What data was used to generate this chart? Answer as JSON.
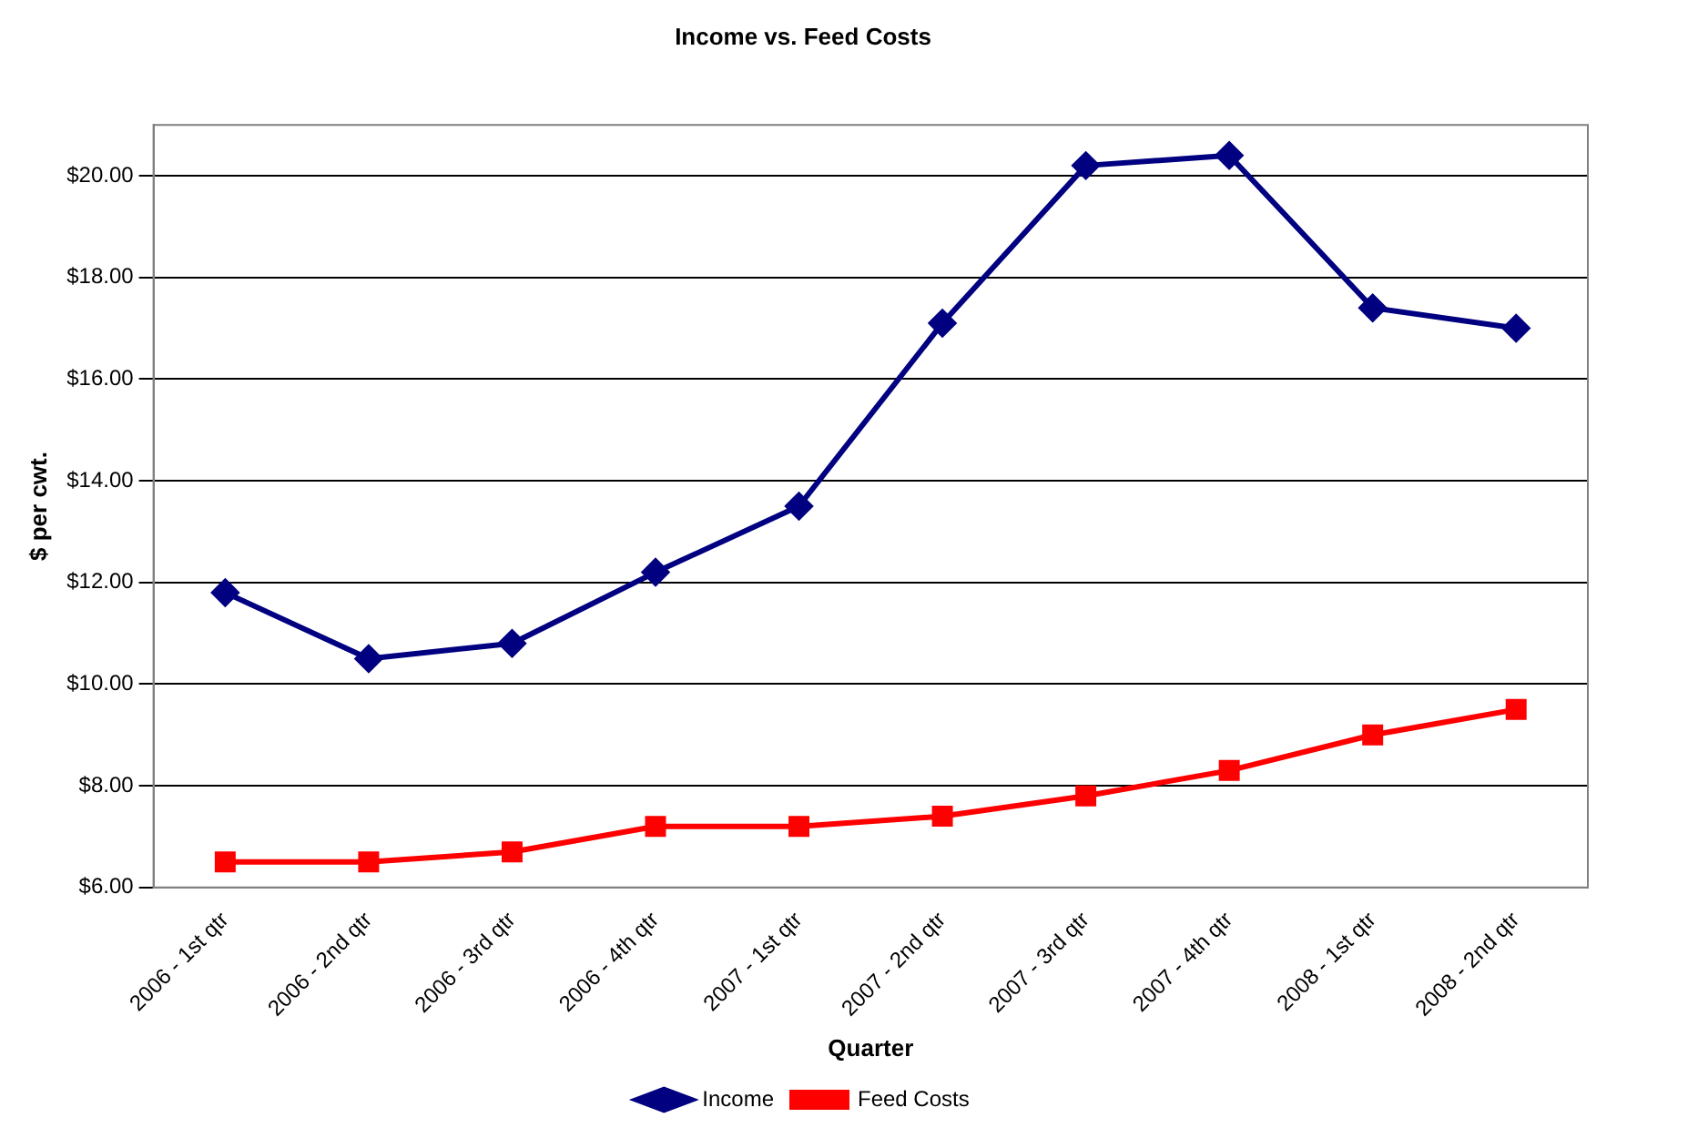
{
  "chart_data": {
    "type": "line",
    "title": "Income vs. Feed Costs",
    "xlabel": "Quarter",
    "ylabel": "$ per cwt.",
    "categories": [
      "2006 - 1st qtr",
      "2006 - 2nd qtr",
      "2006 - 3rd qtr",
      "2006 - 4th qtr",
      "2007 - 1st qtr",
      "2007 - 2nd qtr",
      "2007 - 3rd qtr",
      "2007 - 4th qtr",
      "2008 - 1st qtr",
      "2008 - 2nd qtr"
    ],
    "series": [
      {
        "name": "Income",
        "color": "#000080",
        "marker": "diamond",
        "values": [
          11.8,
          10.5,
          10.8,
          12.2,
          13.5,
          17.1,
          20.2,
          20.4,
          17.4,
          17.0
        ]
      },
      {
        "name": "Feed Costs",
        "color": "#ff0000",
        "marker": "square",
        "values": [
          6.5,
          6.5,
          6.7,
          7.2,
          7.2,
          7.4,
          7.8,
          8.3,
          9.0,
          9.5
        ]
      }
    ],
    "ylim": [
      6,
      21
    ],
    "yticks": [
      {
        "value": 6,
        "label": "$6.00"
      },
      {
        "value": 8,
        "label": "$8.00"
      },
      {
        "value": 10,
        "label": "$10.00"
      },
      {
        "value": 12,
        "label": "$12.00"
      },
      {
        "value": 14,
        "label": "$14.00"
      },
      {
        "value": 16,
        "label": "$16.00"
      },
      {
        "value": 18,
        "label": "$18.00"
      },
      {
        "value": 20,
        "label": "$20.00"
      }
    ],
    "grid": "y",
    "legend": "bottom",
    "line_style": "solid"
  }
}
